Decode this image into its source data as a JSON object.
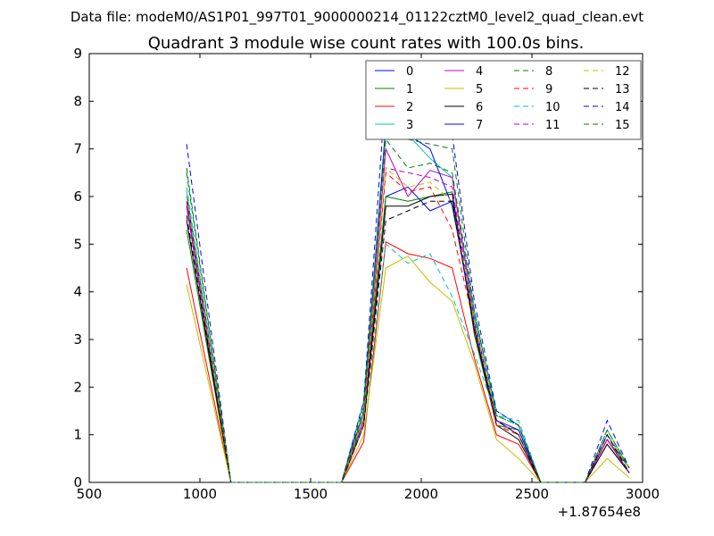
{
  "suptitle": "Data file: modeM0/AS1P01_997T01_9000000214_01122cztM0_level2_quad_clean.evt",
  "chart_data": {
    "type": "line",
    "title": "Quadrant 3 module wise count rates with 100.0s bins.",
    "xlabel": "",
    "ylabel": "",
    "x_offset_label": "+1.87654e8",
    "xlim": [
      500,
      3000
    ],
    "ylim": [
      0,
      9
    ],
    "xticks": [
      500,
      1000,
      1500,
      2000,
      2500,
      3000
    ],
    "yticks": [
      0,
      1,
      2,
      3,
      4,
      5,
      6,
      7,
      8,
      9
    ],
    "grid": false,
    "legend_location": "top-right",
    "legend_columns": 4,
    "x": [
      940,
      1140,
      1240,
      1340,
      1440,
      1540,
      1640,
      1740,
      1840,
      1940,
      2040,
      2140,
      2240,
      2340,
      2440,
      2540,
      2640,
      2740,
      2840,
      2940
    ],
    "series": [
      {
        "name": "0",
        "color": "#0000ff",
        "style": "solid",
        "values": [
          5.8,
          0,
          0,
          0,
          0,
          0,
          0,
          1.3,
          6.0,
          6.2,
          5.7,
          5.9,
          3.2,
          1.3,
          1.0,
          0,
          0,
          0,
          0.9,
          0.2
        ]
      },
      {
        "name": "1",
        "color": "#008000",
        "style": "solid",
        "values": [
          5.3,
          0,
          0,
          0,
          0,
          0,
          0,
          1.4,
          6.0,
          5.9,
          6.0,
          6.1,
          3.1,
          1.2,
          1.1,
          0,
          0,
          0,
          0.9,
          0.3
        ]
      },
      {
        "name": "2",
        "color": "#ff0000",
        "style": "solid",
        "values": [
          4.5,
          0,
          0,
          0,
          0,
          0,
          0,
          0.85,
          5.05,
          4.8,
          4.7,
          4.5,
          2.6,
          1.0,
          0.8,
          0,
          0,
          0,
          0.8,
          0.2
        ]
      },
      {
        "name": "3",
        "color": "#00bfbf",
        "style": "solid",
        "values": [
          6.1,
          0,
          0,
          0,
          0,
          0,
          0,
          1.7,
          7.5,
          7.3,
          6.8,
          6.4,
          3.5,
          1.5,
          1.2,
          0,
          0,
          0,
          1.0,
          0.3
        ]
      },
      {
        "name": "4",
        "color": "#bf00bf",
        "style": "solid",
        "values": [
          5.9,
          0,
          0,
          0,
          0,
          0,
          0,
          1.3,
          7.0,
          6.0,
          6.55,
          6.4,
          3.4,
          1.3,
          1.0,
          0,
          0,
          0,
          0.9,
          0.2
        ]
      },
      {
        "name": "5",
        "color": "#bfbf00",
        "style": "solid",
        "values": [
          4.15,
          0,
          0,
          0,
          0,
          0,
          0,
          1.0,
          4.5,
          4.75,
          4.2,
          3.8,
          2.5,
          0.9,
          0.5,
          0,
          0,
          0,
          0.5,
          0.1
        ]
      },
      {
        "name": "6",
        "color": "#000000",
        "style": "solid",
        "values": [
          5.5,
          0,
          0,
          0,
          0,
          0,
          0,
          1.2,
          5.8,
          5.8,
          6.0,
          6.05,
          3.2,
          1.2,
          0.9,
          0,
          0,
          0,
          0.8,
          0.2
        ]
      },
      {
        "name": "7",
        "color": "#0000ff",
        "style": "solid",
        "values": [
          6.0,
          0,
          0,
          0,
          0,
          0,
          0,
          1.5,
          7.5,
          7.3,
          7.0,
          5.8,
          3.4,
          1.3,
          1.1,
          0,
          0,
          0,
          1.0,
          0.3
        ]
      },
      {
        "name": "8",
        "color": "#008000",
        "style": "dashed",
        "values": [
          6.6,
          0,
          0,
          0,
          0,
          0,
          0,
          1.6,
          7.2,
          6.6,
          6.7,
          6.5,
          3.6,
          1.4,
          1.2,
          0,
          0,
          0,
          1.1,
          0.3
        ]
      },
      {
        "name": "9",
        "color": "#ff0000",
        "style": "dashed",
        "values": [
          5.9,
          0,
          0,
          0,
          0,
          0,
          0,
          1.3,
          6.5,
          6.1,
          6.2,
          5.3,
          3.3,
          1.2,
          1.0,
          0,
          0,
          0,
          0.9,
          0.2
        ]
      },
      {
        "name": "10",
        "color": "#00bfbf",
        "style": "dashed",
        "values": [
          6.2,
          0,
          0,
          0,
          0,
          0,
          0,
          1.2,
          5.0,
          4.6,
          4.8,
          3.9,
          2.7,
          1.4,
          1.3,
          0,
          0,
          0,
          1.0,
          0.3
        ]
      },
      {
        "name": "11",
        "color": "#bf00bf",
        "style": "dashed",
        "values": [
          5.8,
          0,
          0,
          0,
          0,
          0,
          0,
          1.3,
          6.6,
          6.5,
          6.4,
          6.2,
          3.3,
          1.3,
          1.0,
          0,
          0,
          0,
          0.9,
          0.2
        ]
      },
      {
        "name": "12",
        "color": "#bfbf00",
        "style": "dashed",
        "values": [
          6.0,
          0,
          0,
          0,
          0,
          0,
          0,
          1.4,
          6.6,
          6.2,
          6.3,
          5.9,
          3.4,
          1.3,
          1.0,
          0,
          0,
          0,
          1.0,
          0.3
        ]
      },
      {
        "name": "13",
        "color": "#000000",
        "style": "dashed",
        "values": [
          5.6,
          0,
          0,
          0,
          0,
          0,
          0,
          1.2,
          5.5,
          5.7,
          5.9,
          5.9,
          3.2,
          1.3,
          1.0,
          0,
          0,
          0,
          1.0,
          0.2
        ]
      },
      {
        "name": "14",
        "color": "#0000ff",
        "style": "dashed",
        "values": [
          7.1,
          0,
          0,
          0,
          0,
          0,
          0,
          1.7,
          8.3,
          7.4,
          7.5,
          7.3,
          3.8,
          1.5,
          1.2,
          0,
          0,
          0,
          1.3,
          0.3
        ]
      },
      {
        "name": "15",
        "color": "#008000",
        "style": "dashed",
        "values": [
          6.5,
          0,
          0,
          0,
          0,
          0,
          0,
          1.5,
          7.4,
          7.2,
          7.1,
          7.0,
          3.6,
          1.4,
          1.2,
          0,
          0,
          0,
          1.1,
          0.3
        ]
      }
    ]
  }
}
